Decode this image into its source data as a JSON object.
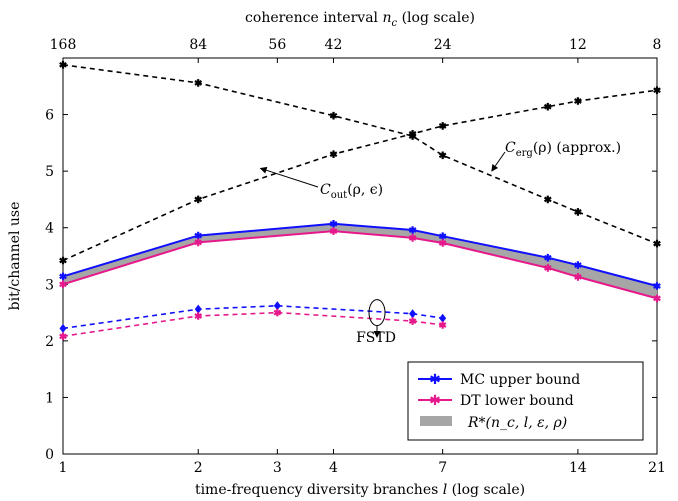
{
  "chart_data": {
    "type": "line",
    "bottom_axis": {
      "label": "time-frequency diversity branches l (log scale)",
      "label_main": "time-frequency diversity branches ",
      "label_var": "l",
      "label_suffix": " (log scale)",
      "scale": "log",
      "xlim": [
        1,
        21
      ],
      "ticks": [
        1,
        2,
        3,
        4,
        7,
        14,
        21
      ],
      "tick_labels": [
        "1",
        "2",
        "3",
        "4",
        "7",
        "14",
        "21"
      ]
    },
    "top_axis": {
      "label": "coherence interval n_c (log scale)",
      "label_main": "coherence interval ",
      "label_var": "n",
      "label_sub": "c",
      "label_suffix": " (log scale)",
      "tick_labels": [
        "168",
        "84",
        "56",
        "42",
        "24",
        "12",
        "8"
      ],
      "tick_l_values": [
        1,
        2,
        3,
        4,
        7,
        14,
        21
      ]
    },
    "y_axis": {
      "label": "bit/channel use",
      "ylim": [
        0,
        7
      ],
      "ticks": [
        0,
        1,
        2,
        3,
        4,
        5,
        6
      ],
      "tick_labels": [
        "0",
        "1",
        "2",
        "3",
        "4",
        "5",
        "6"
      ]
    },
    "series": [
      {
        "name": "MC upper bound",
        "color": "#1010ff",
        "style": "solid",
        "marker": "star",
        "x": [
          1,
          2,
          4,
          6,
          7,
          12,
          14,
          21
        ],
        "y": [
          3.14,
          3.86,
          4.07,
          3.96,
          3.85,
          3.47,
          3.34,
          2.97
        ]
      },
      {
        "name": "DT lower bound",
        "color": "#e6198c",
        "style": "solid",
        "marker": "star",
        "x": [
          1,
          2,
          4,
          6,
          7,
          12,
          14,
          21
        ],
        "y": [
          3.0,
          3.74,
          3.94,
          3.82,
          3.73,
          3.29,
          3.13,
          2.75
        ]
      },
      {
        "name": "MC upper bound (FSTD)",
        "color": "#1010ff",
        "style": "dashed",
        "marker": "diamond",
        "x": [
          1,
          2,
          3,
          6,
          7
        ],
        "y": [
          2.22,
          2.56,
          2.62,
          2.48,
          2.4
        ]
      },
      {
        "name": "DT lower bound (FSTD)",
        "color": "#e6198c",
        "style": "dashed",
        "marker": "star",
        "x": [
          1,
          2,
          3,
          6,
          7
        ],
        "y": [
          2.08,
          2.44,
          2.5,
          2.35,
          2.28
        ]
      },
      {
        "name": "C_erg(rho) (approx.)",
        "color": "#000000",
        "style": "dashed",
        "marker": "star",
        "x": [
          1,
          2,
          4,
          6,
          7,
          12,
          14,
          21
        ],
        "y": [
          6.88,
          6.56,
          5.98,
          5.62,
          5.28,
          4.5,
          4.28,
          3.72
        ]
      },
      {
        "name": "C_out(rho, epsilon)",
        "color": "#000000",
        "style": "dashed",
        "marker": "star",
        "x": [
          1,
          2,
          4,
          6,
          7,
          12,
          14,
          21
        ],
        "y": [
          3.42,
          4.5,
          5.3,
          5.66,
          5.8,
          6.14,
          6.24,
          6.43
        ]
      }
    ],
    "band": {
      "name": "R*(n_c, l, epsilon, rho)",
      "color": "#a6a6a6",
      "between": [
        "MC upper bound",
        "DT lower bound"
      ]
    },
    "legend": {
      "placement": "bottom-right",
      "entries": [
        {
          "label": "MC upper bound",
          "label_tex": "MC upper bound",
          "color": "#1010ff",
          "kind": "line"
        },
        {
          "label": "DT lower bound",
          "label_tex": "DT lower bound",
          "color": "#e6198c",
          "kind": "line"
        },
        {
          "label": "R*(n_c, l, ε, ρ)",
          "label_tex": "R*(n_c, l, ε, ρ)",
          "color": "#a6a6a6",
          "kind": "band"
        }
      ]
    },
    "annotations": [
      {
        "text_main": "C",
        "text_sub": "erg",
        "text_rest": "(ρ) (approx.)",
        "series": "C_erg(rho) (approx.)",
        "arrow_to": {
          "x": 9.0,
          "y": 5.0
        }
      },
      {
        "text_main": "C",
        "text_sub": "out",
        "text_rest": "(ρ, ϵ)",
        "series": "C_out(rho, epsilon)",
        "arrow_to": {
          "x": 2.75,
          "y": 5.05
        }
      },
      {
        "text": "FSTD",
        "arrow_to": {
          "x": 5.0,
          "y": 2.1
        },
        "circle_at": {
          "x": 5.0,
          "y": 2.5
        }
      }
    ],
    "grid": false
  }
}
